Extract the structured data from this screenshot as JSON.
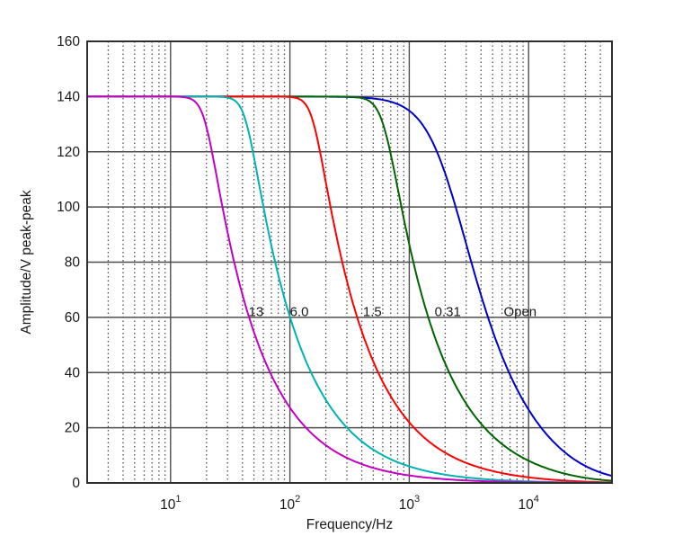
{
  "figure": {
    "background": "#ffffff",
    "text_color": "#1a1a1a"
  },
  "chart_data": {
    "type": "line",
    "title": "",
    "xlabel": "Frequency/Hz",
    "ylabel": "Amplitude/V peak-peak",
    "x_scale": "log",
    "y_scale": "linear",
    "xlim": [
      2,
      50000
    ],
    "ylim": [
      0,
      160
    ],
    "x_major_ticks": [
      10,
      100,
      1000,
      10000
    ],
    "y_major_ticks": [
      0,
      20,
      40,
      60,
      80,
      100,
      120,
      140,
      160
    ],
    "grid": {
      "major": true,
      "minor_x_dotted": true,
      "major_color": "#4d4d4d",
      "minor_color": "#4f4f4f",
      "frame_color": "#2e2e2e"
    },
    "legend_position": "inline-curve-labels",
    "plateau_v": 140,
    "second_pole_hz": 25000,
    "series": [
      {
        "label": "13",
        "color": "#c400c4",
        "plateau": 140,
        "corner_hz": 19.5,
        "knee_sharpness": 10,
        "points": [
          [
            2,
            140
          ],
          [
            10,
            140
          ],
          [
            20,
            129
          ],
          [
            30,
            91
          ],
          [
            50,
            55
          ],
          [
            100,
            27
          ],
          [
            300,
            9
          ],
          [
            1000,
            2.7
          ],
          [
            10000,
            0.26
          ],
          [
            50000,
            0.02
          ]
        ]
      },
      {
        "label": "6.0",
        "color": "#00b2b2",
        "plateau": 140,
        "corner_hz": 43,
        "knee_sharpness": 10,
        "points": [
          [
            2,
            140
          ],
          [
            20,
            140
          ],
          [
            43,
            128
          ],
          [
            60,
            100
          ],
          [
            100,
            60
          ],
          [
            300,
            20
          ],
          [
            1000,
            6
          ],
          [
            10000,
            0.56
          ],
          [
            50000,
            0.05
          ]
        ]
      },
      {
        "label": "1.5",
        "color": "#ff0000",
        "plateau": 140,
        "corner_hz": 157,
        "knee_sharpness": 10,
        "points": [
          [
            2,
            140
          ],
          [
            100,
            139
          ],
          [
            157,
            128
          ],
          [
            300,
            73
          ],
          [
            500,
            44
          ],
          [
            1000,
            22
          ],
          [
            3000,
            7.3
          ],
          [
            10000,
            2
          ],
          [
            50000,
            0.2
          ]
        ]
      },
      {
        "label": "0.31",
        "color": "#006400",
        "plateau": 140,
        "corner_hz": 620,
        "knee_sharpness": 8,
        "points": [
          [
            2,
            140
          ],
          [
            300,
            140
          ],
          [
            620,
            128
          ],
          [
            1000,
            87
          ],
          [
            1500,
            58
          ],
          [
            3000,
            29
          ],
          [
            10000,
            8
          ],
          [
            50000,
            0.8
          ]
        ]
      },
      {
        "label": "Open",
        "color": "#0000cc",
        "plateau": 140,
        "corner_hz": 2050,
        "knee_sharpness": 3,
        "points": [
          [
            2,
            140
          ],
          [
            500,
            140
          ],
          [
            1000,
            135
          ],
          [
            2050,
            111
          ],
          [
            3000,
            87
          ],
          [
            5000,
            55
          ],
          [
            10000,
            27
          ],
          [
            30000,
            6.2
          ],
          [
            50000,
            2.5
          ]
        ]
      }
    ],
    "curve_labels": [
      {
        "text": "13",
        "x_hz": 52,
        "y_v": 62
      },
      {
        "text": "6.0",
        "x_hz": 120,
        "y_v": 62
      },
      {
        "text": "1.5",
        "x_hz": 490,
        "y_v": 62
      },
      {
        "text": "0.31",
        "x_hz": 2100,
        "y_v": 62
      },
      {
        "text": "Open",
        "x_hz": 8500,
        "y_v": 62
      }
    ]
  }
}
